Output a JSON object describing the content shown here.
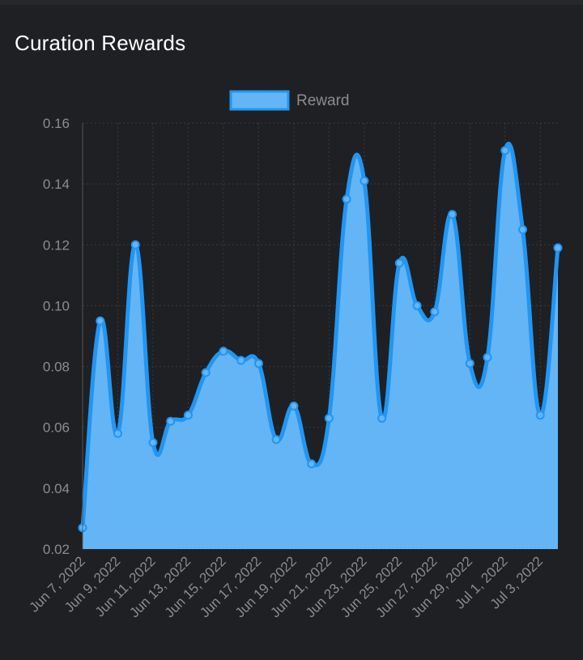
{
  "card": {
    "title": "Curation Rewards"
  },
  "colors": {
    "background": "#1f2023",
    "series_stroke": "#2196f3",
    "series_fill": "#64b5f6",
    "tick_text": "#8c8c8c",
    "grid": "#3a3a3a"
  },
  "chart_data": {
    "type": "area",
    "title": "",
    "xlabel": "",
    "ylabel": "",
    "x": [
      "Jun 7, 2022",
      "Jun 8, 2022",
      "Jun 9, 2022",
      "Jun 10, 2022",
      "Jun 11, 2022",
      "Jun 12, 2022",
      "Jun 13, 2022",
      "Jun 14, 2022",
      "Jun 15, 2022",
      "Jun 16, 2022",
      "Jun 17, 2022",
      "Jun 18, 2022",
      "Jun 19, 2022",
      "Jun 20, 2022",
      "Jun 21, 2022",
      "Jun 22, 2022",
      "Jun 23, 2022",
      "Jun 24, 2022",
      "Jun 25, 2022",
      "Jun 26, 2022",
      "Jun 27, 2022",
      "Jun 28, 2022",
      "Jun 29, 2022",
      "Jun 30, 2022",
      "Jul 1, 2022",
      "Jul 2, 2022",
      "Jul 3, 2022",
      "Jul 4, 2022"
    ],
    "x_tick_labels": [
      "Jun 7, 2022",
      "Jun 9, 2022",
      "Jun 11, 2022",
      "Jun 13, 2022",
      "Jun 15, 2022",
      "Jun 17, 2022",
      "Jun 19, 2022",
      "Jun 21, 2022",
      "Jun 23, 2022",
      "Jun 25, 2022",
      "Jun 27, 2022",
      "Jun 29, 2022",
      "Jul 1, 2022",
      "Jul 3, 2022"
    ],
    "series": [
      {
        "name": "Reward",
        "values": [
          0.027,
          0.095,
          0.058,
          0.12,
          0.055,
          0.062,
          0.064,
          0.078,
          0.085,
          0.082,
          0.081,
          0.056,
          0.067,
          0.048,
          0.063,
          0.135,
          0.141,
          0.063,
          0.114,
          0.1,
          0.098,
          0.13,
          0.081,
          0.083,
          0.151,
          0.125,
          0.064,
          0.119
        ]
      }
    ],
    "ylim": [
      0.02,
      0.16
    ],
    "y_ticks": [
      "0.16",
      "0.14",
      "0.12",
      "0.10",
      "0.08",
      "0.06",
      "0.04",
      "0.02"
    ],
    "legend": "top-center",
    "grid": true
  }
}
